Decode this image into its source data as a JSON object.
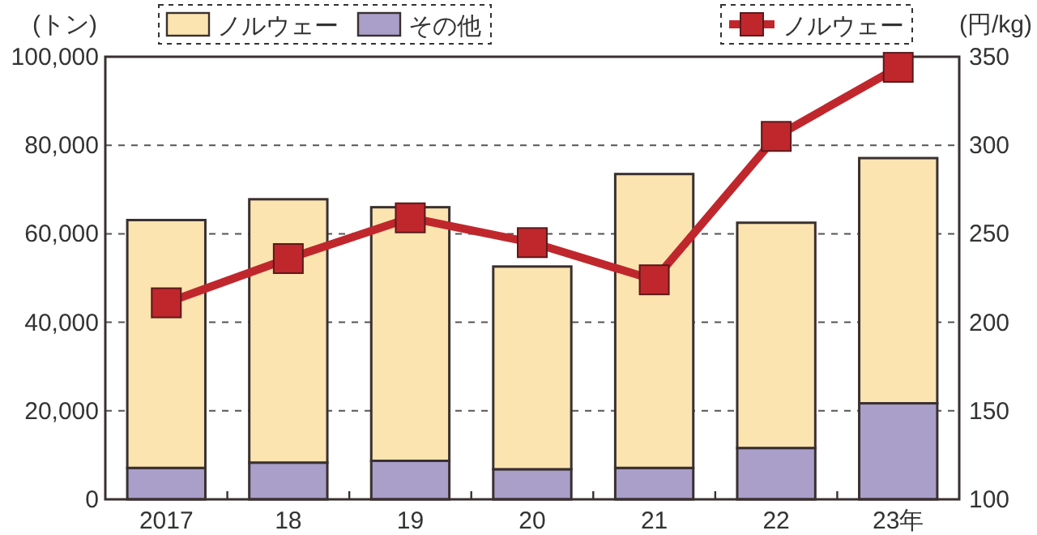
{
  "chart_data": {
    "type": "bar",
    "stacked": true,
    "categories": [
      "2017",
      "18",
      "19",
      "20",
      "21",
      "22",
      "23年"
    ],
    "series": [
      {
        "name": "その他",
        "color": "#a99fc9",
        "values": [
          7100,
          8300,
          8700,
          6800,
          7100,
          11600,
          21700
        ]
      },
      {
        "name": "ノルウェー",
        "color": "#fbe4b0",
        "values": [
          56000,
          59500,
          57300,
          45800,
          66400,
          50900,
          55400
        ]
      },
      {
        "name": "ノルウェー",
        "type": "line",
        "axis": "y2",
        "color": "#c0272d",
        "values": [
          211,
          236,
          259,
          245,
          224,
          305,
          344
        ]
      }
    ],
    "ylabel": "(トン)",
    "y2label": "(円/kg)",
    "ylim": [
      0,
      100000
    ],
    "yticks": [
      {
        "value": 0,
        "label": "0"
      },
      {
        "value": 20000,
        "label": "20,000"
      },
      {
        "value": 40000,
        "label": "40,000"
      },
      {
        "value": 60000,
        "label": "60,000"
      },
      {
        "value": 80000,
        "label": "80,000"
      },
      {
        "value": 100000,
        "label": "100,000"
      }
    ],
    "y2lim": [
      100,
      350
    ],
    "y2ticks": [
      100,
      150,
      200,
      250,
      300,
      350
    ],
    "grid": "y",
    "legend": "top",
    "marker": "square",
    "line_style": "solid"
  }
}
